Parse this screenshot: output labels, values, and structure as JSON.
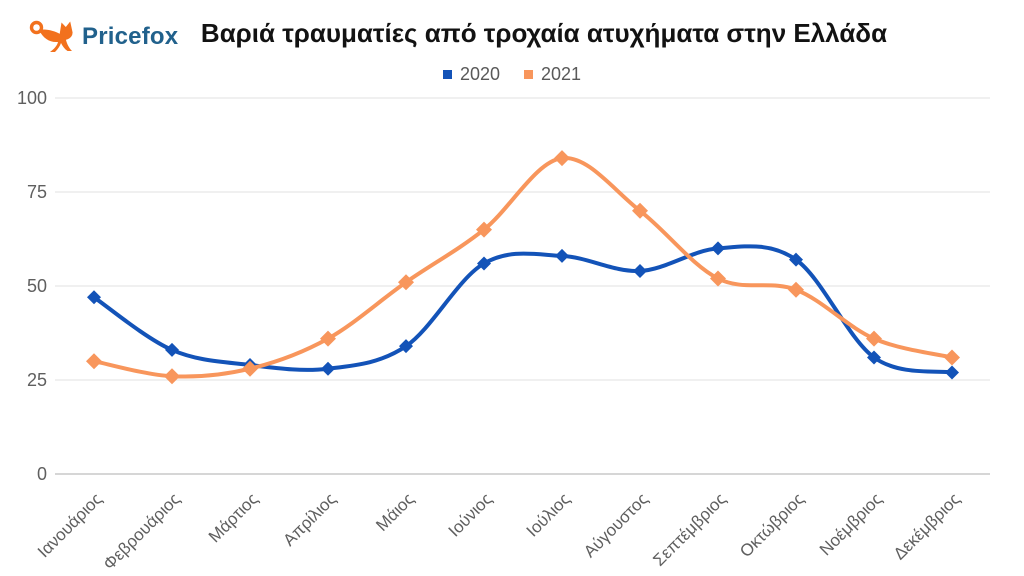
{
  "logo": {
    "brand": "Pricefox",
    "fox_color": "#F2711D",
    "brand_color": "#21618C"
  },
  "chart_data": {
    "type": "line",
    "title": "Βαριά τραυματίες από τροχαία ατυχήματα στην Ελλάδα",
    "categories": [
      "Ιανουάριος",
      "Φεβρουάριος",
      "Μάρτιος",
      "Απρίλιος",
      "Μάιος",
      "Ιούνιος",
      "Ιούλιος",
      "Αύγουστος",
      "Σεπτέμβριος",
      "Οκτώβριος",
      "Νοέμβριος",
      "Δεκέμβριος"
    ],
    "series": [
      {
        "name": "2020",
        "color": "#1353B8",
        "marker": "diamond",
        "marker_size": 7,
        "values": [
          47,
          33,
          29,
          28,
          34,
          56,
          58,
          54,
          60,
          57,
          31,
          27
        ]
      },
      {
        "name": "2021",
        "color": "#F8965C",
        "marker": "diamond",
        "marker_size": 8,
        "values": [
          30,
          26,
          28,
          36,
          51,
          65,
          84,
          70,
          52,
          49,
          36,
          31
        ]
      }
    ],
    "ylim": [
      0,
      100
    ],
    "yticks": [
      0,
      25,
      50,
      75,
      100
    ],
    "grid": true,
    "legend_position": "top",
    "axis_text_color": "#5F5F5F",
    "gridline_color": "#E6E6E6",
    "zeroline_color": "#C9C9C9"
  }
}
